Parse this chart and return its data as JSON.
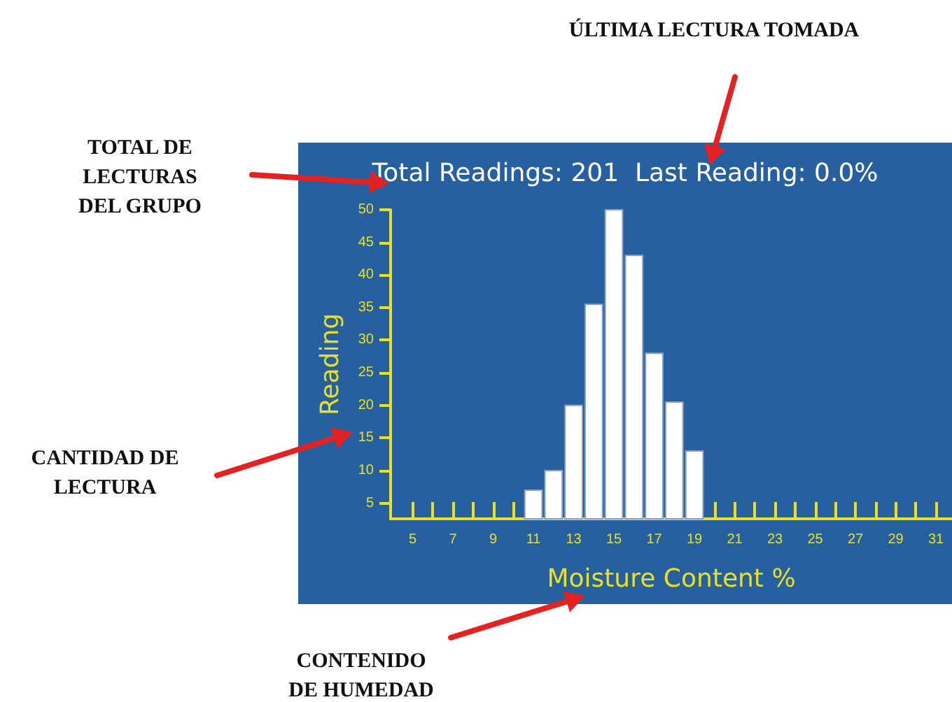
{
  "chart_data": {
    "type": "histogram",
    "title": "Total Readings: 201  Last Reading: 0.0%",
    "xlabel": "Moisture Content %",
    "ylabel": "Reading",
    "annotations": [
      "ÚLTIMA LECTURA TOMADA",
      "TOTAL DE\nLECTURAS\nDEL GRUPO",
      "CANTIDAD DE\nLECTURA",
      "CONTENIDO\nDE HUMEDAD"
    ],
    "bins": [
      10.5,
      11.5,
      12.5,
      13.5,
      14.5,
      15.5,
      16.5,
      17.5,
      18.5,
      19.5
    ],
    "values": [
      7,
      10,
      20,
      35.5,
      50,
      43,
      28,
      20.5,
      13
    ],
    "color": "#ffffff",
    "xlim": [
      3.9,
      31.8
    ],
    "xticks": [
      5,
      {
        "value": 6,
        "label": null
      },
      7,
      {
        "value": 8,
        "label": null
      },
      9,
      {
        "value": 10,
        "label": null
      },
      11,
      {
        "value": 12,
        "label": null
      },
      13,
      {
        "value": 14,
        "label": null
      },
      15,
      {
        "value": 16,
        "label": null
      },
      17,
      {
        "value": 18,
        "label": null
      },
      19,
      {
        "value": 20,
        "label": null
      },
      21,
      {
        "value": 22,
        "label": null
      },
      23,
      {
        "value": 24,
        "label": null
      },
      25,
      {
        "value": 26,
        "label": null
      },
      27,
      {
        "value": 28,
        "label": null
      },
      29,
      {
        "value": 30,
        "label": null
      },
      31
    ],
    "ylim": [
      2.6,
      50
    ],
    "yticks": [
      5,
      10,
      15,
      20,
      25,
      30,
      35,
      40,
      45,
      50
    ],
    "grid": false
  }
}
